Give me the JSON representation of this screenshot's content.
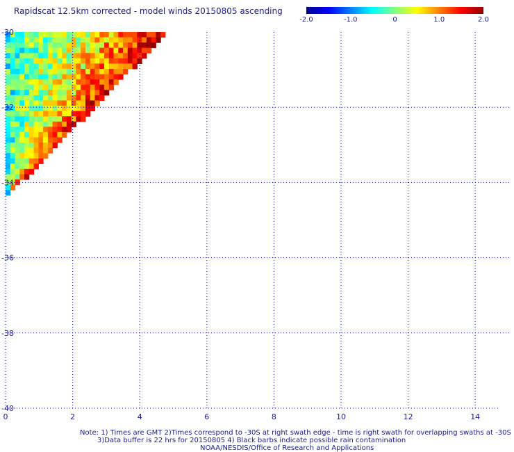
{
  "title": "Rapidscat 12.5km corrected - model winds 20150805 ascending",
  "colorbar": {
    "ticks": [
      "-2.0",
      "-1.0",
      "0",
      "1.0",
      "2.0"
    ],
    "range": [
      -2.0,
      2.0
    ]
  },
  "notes": [
    "Note: 1) Times are GMT 2)Times correspond to -30S at right swath edge - time is right swath for overlapping swaths at -30S",
    "3)Data buffer is 22 hrs for 20150805 4) Black barbs indicate possible rain contamination",
    "NOAA/NESDIS/Office of Research and Applications"
  ],
  "chart_data": {
    "type": "heatmap",
    "title": "Rapidscat 12.5km corrected - model winds 20150805 ascending",
    "xlim": [
      0,
      14.7
    ],
    "ylim": [
      -40,
      -30
    ],
    "x_ticks": [
      "0",
      "2",
      "4",
      "6",
      "8",
      "10",
      "12",
      "14"
    ],
    "y_ticks": [
      "-30",
      "-32",
      "-34",
      "-36",
      "-38",
      "-40"
    ],
    "grid": true,
    "colorscale": [
      "#00008f",
      "#0000ff",
      "#00ffff",
      "#ffff00",
      "#ff0000",
      "#8f0000"
    ],
    "value_range": [
      -2.0,
      2.0
    ],
    "swath": {
      "description_values": "wind speed difference (corrected - model) over triangular swath",
      "lon_edge_at_top": 4.7,
      "lat_bottom": -34.3,
      "cell_size_deg": 0.14,
      "typical_values": {
        "west_edge": -0.3,
        "center": 0.4,
        "east_edge": 1.6
      }
    }
  }
}
